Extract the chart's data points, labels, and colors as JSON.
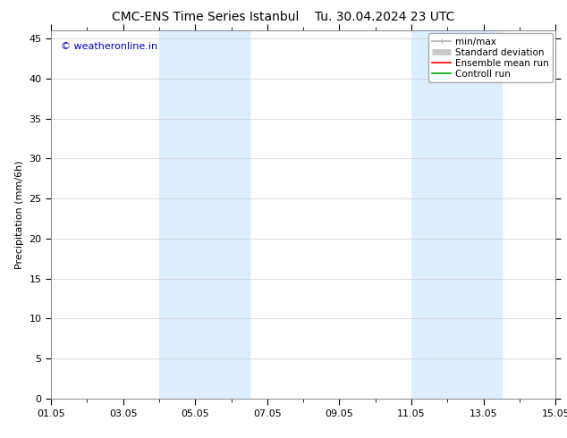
{
  "title_left": "CMC-ENS Time Series Istanbul",
  "title_right": "Tu. 30.04.2024 23 UTC",
  "ylabel": "Precipitation (mm/6h)",
  "ylim": [
    0,
    46
  ],
  "yticks": [
    0,
    5,
    10,
    15,
    20,
    25,
    30,
    35,
    40,
    45
  ],
  "x_start_days": 0,
  "x_end_days": 14,
  "xtick_labels": [
    "01.05",
    "03.05",
    "05.05",
    "07.05",
    "09.05",
    "11.05",
    "13.05",
    "15.05"
  ],
  "xtick_positions_days": [
    0,
    2,
    4,
    6,
    8,
    10,
    12,
    14
  ],
  "shaded_bands": [
    {
      "x_start_days": 3.0,
      "x_end_days": 5.5
    },
    {
      "x_start_days": 10.0,
      "x_end_days": 12.5
    }
  ],
  "shade_color": "#ddeeff",
  "copyright_text": "© weatheronline.in",
  "copyright_color": "#0000cc",
  "copyright_fontsize": 8,
  "legend_items": [
    {
      "label": "min/max",
      "color": "#b0b0b0",
      "lw": 1.2
    },
    {
      "label": "Standard deviation",
      "color": "#c8c8c8",
      "lw": 5
    },
    {
      "label": "Ensemble mean run",
      "color": "#ff0000",
      "lw": 1.2
    },
    {
      "label": "Controll run",
      "color": "#00aa00",
      "lw": 1.2
    }
  ],
  "bg_color": "#ffffff",
  "grid_color": "#cccccc",
  "title_fontsize": 10,
  "axis_fontsize": 8,
  "tick_fontsize": 8,
  "legend_fontsize": 7.5
}
